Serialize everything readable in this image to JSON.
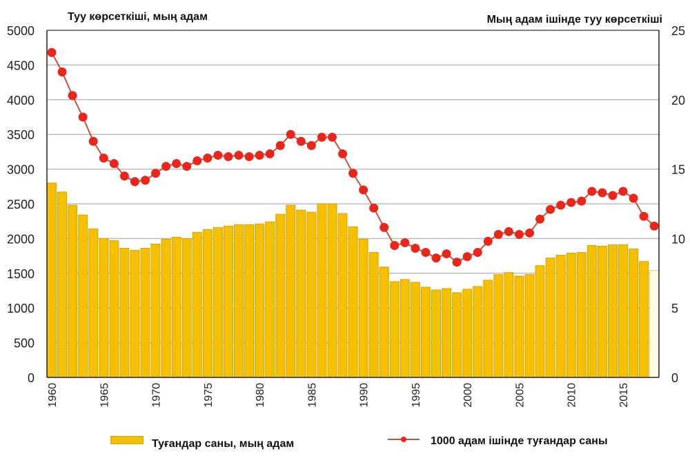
{
  "chart_data": {
    "type": "bar+line",
    "left_axis_title": "Туу көрсеткіші, мың адам",
    "right_axis_title": "Мың адам ішінде туу көрсеткіші",
    "ylim_left": [
      0,
      5000
    ],
    "ylim_right": [
      0,
      25
    ],
    "yticks_left": [
      "0",
      "500",
      "1000",
      "1500",
      "2000",
      "2500",
      "3000",
      "3500",
      "4000",
      "4500",
      "5000"
    ],
    "yticks_right": [
      "0",
      "5",
      "10",
      "15",
      "20",
      "25"
    ],
    "xticks": [
      "1960",
      "1965",
      "1970",
      "1975",
      "1980",
      "1985",
      "1990",
      "1995",
      "2000",
      "2005",
      "2010",
      "2015"
    ],
    "grid": true,
    "legend_placement": "bottom",
    "x": [
      1960,
      1961,
      1962,
      1963,
      1964,
      1965,
      1966,
      1967,
      1968,
      1969,
      1970,
      1971,
      1972,
      1973,
      1974,
      1975,
      1976,
      1977,
      1978,
      1979,
      1980,
      1981,
      1982,
      1983,
      1984,
      1985,
      1986,
      1987,
      1988,
      1989,
      1990,
      1991,
      1992,
      1993,
      1994,
      1995,
      1996,
      1997,
      1998,
      1999,
      2000,
      2001,
      2002,
      2003,
      2004,
      2005,
      2006,
      2007,
      2008,
      2009,
      2010,
      2011,
      2012,
      2013,
      2014,
      2015,
      2016,
      2017,
      2018
    ],
    "series": [
      {
        "name": "Туғандар саны, мың адам",
        "type": "bar",
        "axis": "left",
        "color": "#f5c000",
        "values": [
          2800,
          2670,
          2480,
          2340,
          2140,
          2000,
          1970,
          1860,
          1830,
          1860,
          1920,
          1990,
          2020,
          2000,
          2090,
          2130,
          2160,
          2180,
          2200,
          2200,
          2210,
          2240,
          2350,
          2480,
          2410,
          2380,
          2500,
          2500,
          2360,
          2170,
          1990,
          1800,
          1590,
          1380,
          1410,
          1370,
          1300,
          1260,
          1280,
          1220,
          1270,
          1310,
          1400,
          1480,
          1510,
          1460,
          1480,
          1610,
          1720,
          1760,
          1790,
          1800,
          1900,
          1890,
          1910,
          1910,
          1850,
          1670,
          1540
        ]
      },
      {
        "name": "1000 адам ішінде туғандар саны",
        "type": "line",
        "axis": "right",
        "color": "#e8261c",
        "values": [
          23.4,
          22.0,
          20.3,
          18.75,
          17.0,
          15.8,
          15.4,
          14.5,
          14.1,
          14.2,
          14.7,
          15.2,
          15.4,
          15.2,
          15.6,
          15.8,
          16.0,
          15.9,
          16.0,
          15.9,
          16.0,
          16.1,
          16.7,
          17.5,
          17.0,
          16.7,
          17.3,
          17.3,
          16.1,
          14.7,
          13.5,
          12.2,
          10.8,
          9.5,
          9.7,
          9.3,
          9.0,
          8.6,
          8.9,
          8.3,
          8.7,
          9.0,
          9.8,
          10.3,
          10.5,
          10.3,
          10.4,
          11.4,
          12.1,
          12.4,
          12.6,
          12.7,
          13.4,
          13.3,
          13.1,
          13.4,
          12.9,
          11.6,
          10.9
        ]
      }
    ]
  }
}
